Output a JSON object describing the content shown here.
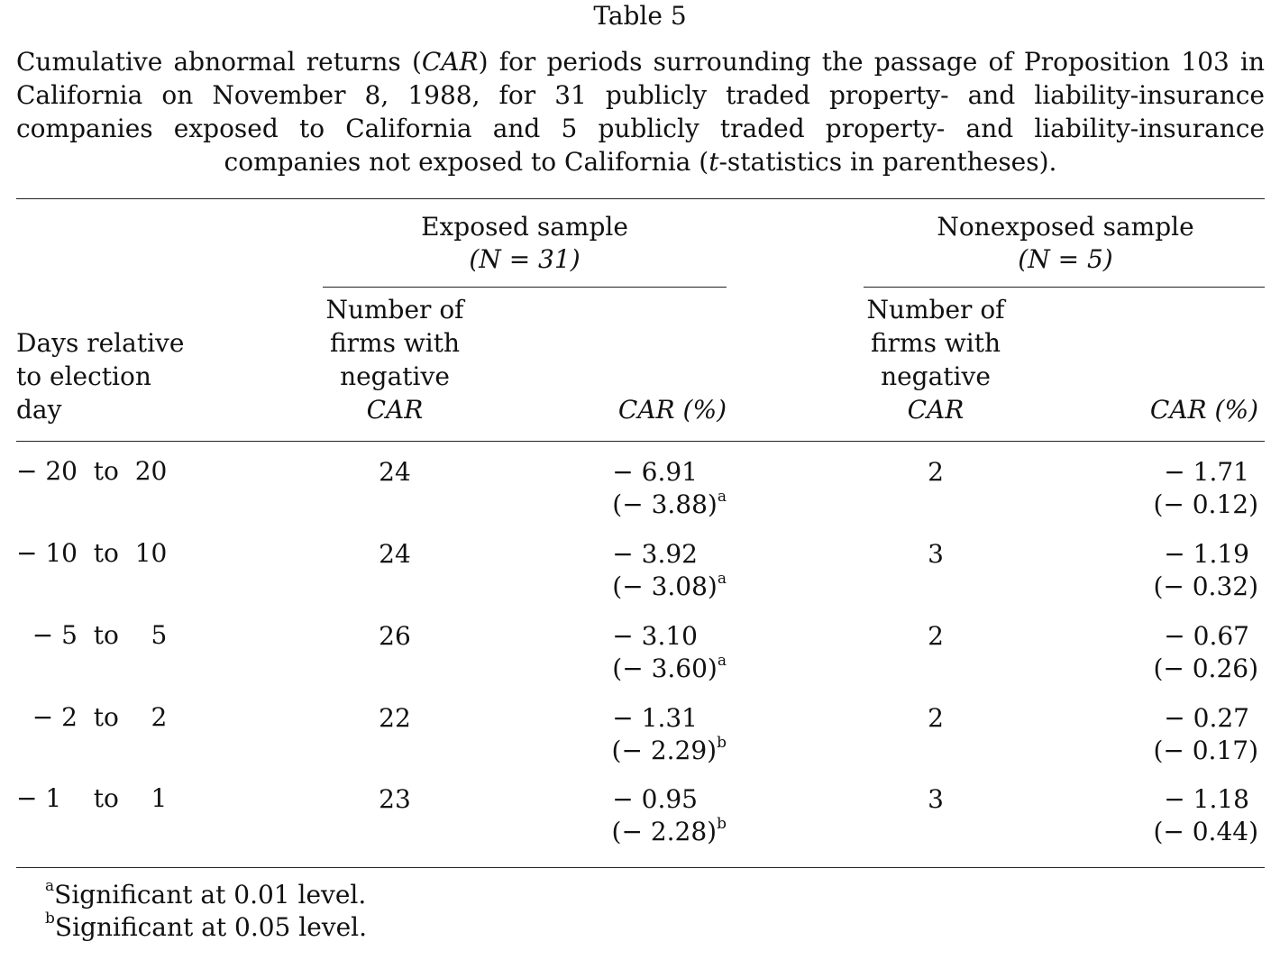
{
  "table": {
    "label": "Table 5",
    "caption_parts": [
      "Cumulative abnormal returns (",
      "CAR",
      ") for periods surrounding the passage of Proposition 103 in California on November 8, 1988, for 31 publicly traded property- and liability-insurance companies exposed to California and 5 publicly traded property- and liability-insurance companies not exposed to California (",
      "t",
      "-statistics in parentheses)."
    ],
    "groups": [
      {
        "title": "Exposed sample",
        "n_label": "(N = 31)"
      },
      {
        "title": "Nonexposed sample",
        "n_label": "(N = 5)"
      }
    ],
    "row_header_lines": [
      "Days relative",
      "to election",
      "day"
    ],
    "count_header_lines": [
      "Number of",
      "firms with",
      "negative",
      "CAR"
    ],
    "car_header": "CAR (%)",
    "rows": [
      {
        "period": "− 20  to  20",
        "exposed_count": "24",
        "exposed_car": "− 6.91",
        "exposed_t": "(− 3.88)",
        "exposed_sig": "a",
        "nonexposed_count": "2",
        "nonexposed_car": "− 1.71",
        "nonexposed_t": "(− 0.12)",
        "nonexposed_sig": ""
      },
      {
        "period": "− 10  to  10",
        "exposed_count": "24",
        "exposed_car": "− 3.92",
        "exposed_t": "(− 3.08)",
        "exposed_sig": "a",
        "nonexposed_count": "3",
        "nonexposed_car": "− 1.19",
        "nonexposed_t": "(− 0.32)",
        "nonexposed_sig": ""
      },
      {
        "period": "  − 5  to    5",
        "exposed_count": "26",
        "exposed_car": "− 3.10",
        "exposed_t": "(− 3.60)",
        "exposed_sig": "a",
        "nonexposed_count": "2",
        "nonexposed_car": "− 0.67",
        "nonexposed_t": "(− 0.26)",
        "nonexposed_sig": ""
      },
      {
        "period": "  − 2  to    2",
        "exposed_count": "22",
        "exposed_car": "− 1.31",
        "exposed_t": "(− 2.29)",
        "exposed_sig": "b",
        "nonexposed_count": "2",
        "nonexposed_car": "− 0.27",
        "nonexposed_t": "(− 0.17)",
        "nonexposed_sig": ""
      },
      {
        "period": "− 1    to    1",
        "exposed_count": "23",
        "exposed_car": "− 0.95",
        "exposed_t": "(− 2.28)",
        "exposed_sig": "b",
        "nonexposed_count": "3",
        "nonexposed_car": "− 1.18",
        "nonexposed_t": "(− 0.44)",
        "nonexposed_sig": ""
      }
    ],
    "footnotes": [
      {
        "mark": "a",
        "text": "Significant at 0.01 level."
      },
      {
        "mark": "b",
        "text": "Significant at 0.05 level."
      }
    ]
  }
}
